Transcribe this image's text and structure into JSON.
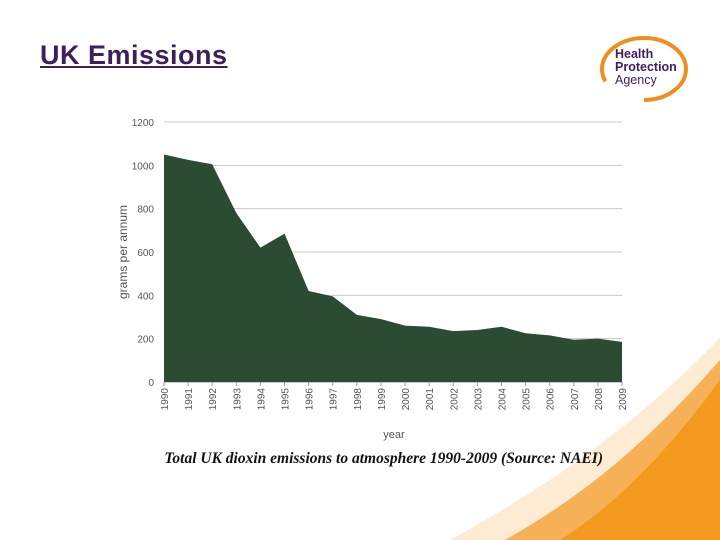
{
  "slide": {
    "title": "UK Emissions",
    "caption": "Total UK dioxin emissions to atmosphere 1990-2009 (Source: NAEI)"
  },
  "logo": {
    "lines": [
      "Health",
      "Protection",
      "Agency"
    ],
    "color": "#3d1f5c",
    "accent": "#f28c1c"
  },
  "colors": {
    "area_fill": "#2b4b33",
    "swoosh": "#f39a1e",
    "title": "#3d1f5c"
  },
  "chart_data": {
    "type": "area",
    "title": "",
    "xlabel": "year",
    "ylabel": "grams per annum",
    "ylim": [
      0,
      1200
    ],
    "yticks": [
      0,
      200,
      400,
      600,
      800,
      1000,
      1200
    ],
    "grid": true,
    "legend": "none",
    "categories": [
      "1990",
      "1991",
      "1992",
      "1993",
      "1994",
      "1995",
      "1996",
      "1997",
      "1998",
      "1999",
      "2000",
      "2001",
      "2002",
      "2003",
      "2004",
      "2005",
      "2006",
      "2007",
      "2008",
      "2009"
    ],
    "series": [
      {
        "values": [
          1050,
          1025,
          1005,
          780,
          620,
          685,
          420,
          395,
          310,
          290,
          260,
          255,
          235,
          240,
          255,
          225,
          215,
          195,
          200,
          185
        ]
      }
    ]
  }
}
